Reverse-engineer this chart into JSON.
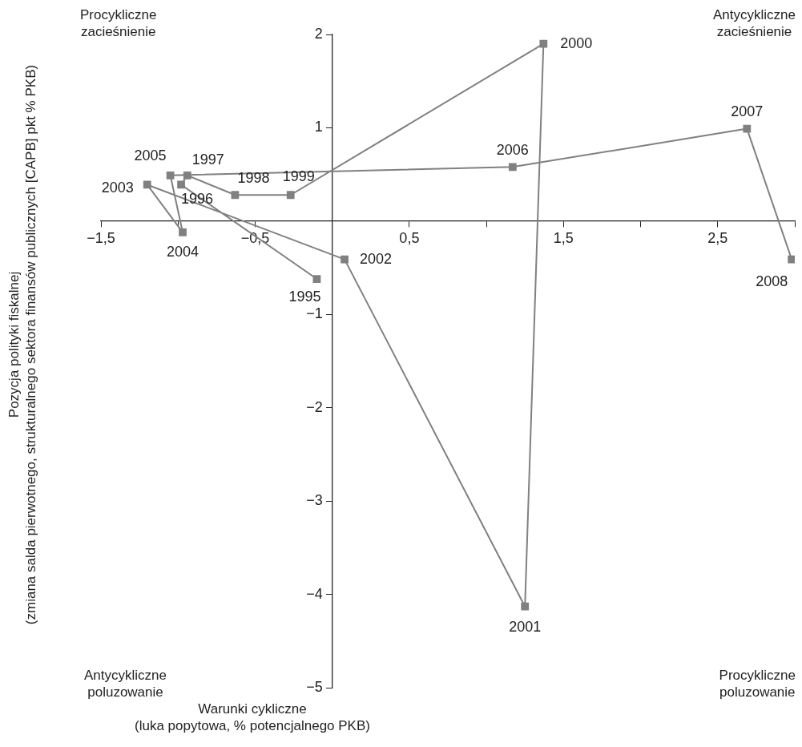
{
  "chart_data": {
    "type": "line",
    "xlabel": "Warunki cykliczne\n(luka popytowa, % potencjalnego PKB)",
    "ylabel": "Pozycja polityki fiskalnej\n(zmiana salda pierwotnego, strukturalnego sektora finansów publicznych [CAPB] pkt % PKB)",
    "x": [
      -0.1,
      -0.98,
      -0.94,
      -0.63,
      -0.27,
      1.37,
      1.25,
      0.08,
      -1.2,
      -0.97,
      -1.05,
      1.17,
      2.69,
      2.98
    ],
    "series": [
      {
        "color": "#808080",
        "values": [
          -0.62,
          0.39,
          0.49,
          0.28,
          0.28,
          1.9,
          -4.13,
          -0.41,
          0.39,
          -0.12,
          0.49,
          0.58,
          0.99,
          -0.41
        ]
      }
    ],
    "marker": "square",
    "line_style": "solid",
    "grid": false,
    "legend": false,
    "xlim": [
      -1.5,
      3
    ],
    "ylim": [
      -5,
      2
    ],
    "xticks": [
      {
        "value": -1.5,
        "label": "−1,5"
      },
      {
        "value": -1,
        "label": null
      },
      {
        "value": -0.5,
        "label": "−0,5"
      },
      {
        "value": 0,
        "label": null
      },
      {
        "value": 0.5,
        "label": "0,5"
      },
      {
        "value": 1,
        "label": null
      },
      {
        "value": 1.5,
        "label": "1,5"
      },
      {
        "value": 2,
        "label": null
      },
      {
        "value": 2.5,
        "label": "2,5"
      },
      {
        "value": 3,
        "label": null
      }
    ],
    "yticks": [
      {
        "value": -5,
        "label": "−5"
      },
      {
        "value": -4,
        "label": "−4"
      },
      {
        "value": -3,
        "label": "−3"
      },
      {
        "value": -2,
        "label": "−2"
      },
      {
        "value": -1,
        "label": "−1"
      },
      {
        "value": 0,
        "label": null
      },
      1,
      2
    ],
    "annotations": [
      "Procykliczne\nzacieśnienie",
      "Antycykliczne\nzacieśnienie",
      "Antycykliczne\npoluzowanie",
      "Procykliczne\npoluzowanie",
      {
        "text": "1995",
        "x": -0.1,
        "y": -0.62
      },
      {
        "text": "1996",
        "x": -0.98,
        "y": 0.39
      },
      {
        "text": "1997",
        "x": -0.94,
        "y": 0.49
      },
      {
        "text": "1998",
        "x": -0.63,
        "y": 0.28
      },
      {
        "text": "1999",
        "x": -0.27,
        "y": 0.28
      },
      {
        "text": "2000",
        "x": 1.37,
        "y": 1.9
      },
      {
        "text": "2001",
        "x": 1.25,
        "y": -4.13
      },
      {
        "text": "2002",
        "x": 0.08,
        "y": -0.41
      },
      {
        "text": "2003",
        "x": -1.2,
        "y": 0.39
      },
      {
        "text": "2004",
        "x": -0.97,
        "y": -0.12
      },
      {
        "text": "2005",
        "x": -1.05,
        "y": 0.49
      },
      {
        "text": "2006",
        "x": 1.17,
        "y": 0.58
      },
      {
        "text": "2007",
        "x": 2.69,
        "y": 0.99
      },
      {
        "text": "2008",
        "x": 2.98,
        "y": -0.41
      }
    ]
  }
}
